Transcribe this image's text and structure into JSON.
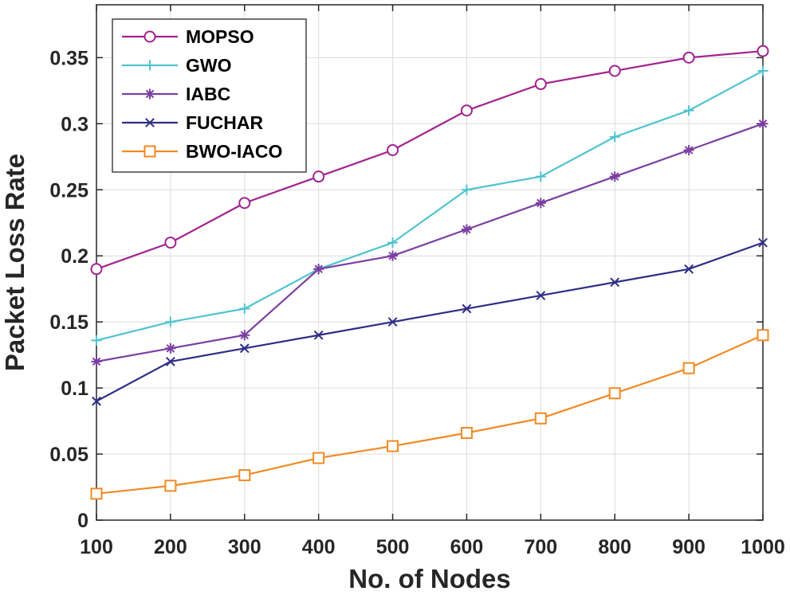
{
  "chart_data": {
    "type": "line",
    "title": "",
    "xlabel": "No. of Nodes",
    "ylabel": "Packet Loss Rate",
    "x": [
      100,
      200,
      300,
      400,
      500,
      600,
      700,
      800,
      900,
      1000
    ],
    "xlim": [
      100,
      1000
    ],
    "ylim": [
      0,
      0.39
    ],
    "xticks": [
      100,
      200,
      300,
      400,
      500,
      600,
      700,
      800,
      900,
      1000
    ],
    "xtick_labels": [
      "100",
      "200",
      "300",
      "400",
      "500",
      "600",
      "700",
      "800",
      "900",
      "1000"
    ],
    "yticks": [
      0,
      0.05,
      0.1,
      0.15,
      0.2,
      0.25,
      0.3,
      0.35
    ],
    "ytick_labels": [
      "0",
      "0.05",
      "0.1",
      "0.15",
      "0.2",
      "0.25",
      "0.3",
      "0.35"
    ],
    "grid": true,
    "legend_position": "top-left",
    "series": [
      {
        "name": "MOPSO",
        "marker": "circle",
        "color": "#a2228e",
        "values": [
          0.19,
          0.21,
          0.24,
          0.26,
          0.28,
          0.31,
          0.33,
          0.34,
          0.35,
          0.355
        ]
      },
      {
        "name": "GWO",
        "marker": "plus",
        "color": "#4fc3d0",
        "values": [
          0.136,
          0.15,
          0.16,
          0.19,
          0.21,
          0.25,
          0.26,
          0.29,
          0.31,
          0.34
        ]
      },
      {
        "name": "IABC",
        "marker": "asterisk",
        "color": "#7b3fa0",
        "values": [
          0.12,
          0.13,
          0.14,
          0.19,
          0.2,
          0.22,
          0.24,
          0.26,
          0.28,
          0.3
        ]
      },
      {
        "name": "FUCHAR",
        "marker": "x",
        "color": "#2e2e86",
        "values": [
          0.09,
          0.12,
          0.13,
          0.14,
          0.15,
          0.16,
          0.17,
          0.18,
          0.19,
          0.21
        ]
      },
      {
        "name": "BWO-IACO",
        "marker": "square",
        "color": "#f08a24",
        "values": [
          0.02,
          0.026,
          0.034,
          0.047,
          0.056,
          0.066,
          0.077,
          0.096,
          0.115,
          0.14
        ]
      }
    ]
  }
}
